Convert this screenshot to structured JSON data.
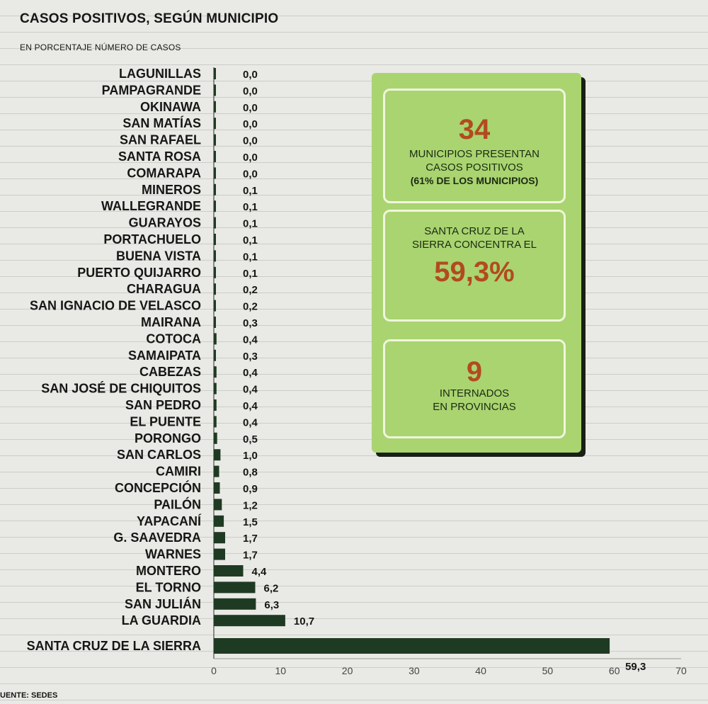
{
  "title": "CASOS POSITIVOS, SEGÚN MUNICIPIO",
  "subtitle": "EN PORCENTAJE NÚMERO DE CASOS",
  "source": "UENTE: SEDES",
  "colors": {
    "bar": "#1f3a22",
    "accent_number": "#b24a20",
    "panel": "#a9d470"
  },
  "info_panel": {
    "box1": {
      "number": "34",
      "line1": "MUNICIPIOS PRESENTAN",
      "line2": "CASOS POSITIVOS",
      "line3": "(61% DE LOS MUNICIPIOS)"
    },
    "box2": {
      "line1": "SANTA CRUZ  DE LA",
      "line2": "SIERRA CONCENTRA EL",
      "number": "59,3%"
    },
    "box3": {
      "number": "9",
      "line1": "INTERNADOS",
      "line2": "EN PROVINCIAS"
    }
  },
  "chart_data": {
    "type": "bar",
    "orientation": "horizontal",
    "title": "CASOS POSITIVOS, SEGÚN MUNICIPIO",
    "subtitle": "EN PORCENTAJE NÚMERO DE CASOS",
    "categories": [
      "LAGUNILLAS",
      "PAMPAGRANDE",
      "OKINAWA",
      "SAN MATÍAS",
      "SAN RAFAEL",
      "SANTA ROSA",
      "COMARAPA",
      "MINEROS",
      "WALLEGRANDE",
      "GUARAYOS",
      "PORTACHUELO",
      "BUENA VISTA",
      "PUERTO QUIJARRO",
      "CHARAGUA",
      "SAN IGNACIO DE VELASCO",
      "MAIRANA",
      "COTOCA",
      "SAMAIPATA",
      "CABEZAS",
      "SAN JOSÉ DE CHIQUITOS",
      "SAN PEDRO",
      "EL PUENTE",
      "PORONGO",
      "SAN CARLOS",
      "CAMIRI",
      "CONCEPCIÓN",
      "PAILÓN",
      "YAPACANÍ",
      "G. SAAVEDRA",
      "WARNES",
      "MONTERO",
      "EL TORNO",
      "SAN JULIÁN",
      "LA GUARDIA",
      "SANTA CRUZ DE LA SIERRA"
    ],
    "values": [
      0.0,
      0.0,
      0.0,
      0.0,
      0.0,
      0.0,
      0.0,
      0.1,
      0.1,
      0.1,
      0.1,
      0.1,
      0.1,
      0.2,
      0.2,
      0.3,
      0.4,
      0.3,
      0.4,
      0.4,
      0.4,
      0.4,
      0.5,
      1.0,
      0.8,
      0.9,
      1.2,
      1.5,
      1.7,
      1.7,
      4.4,
      6.2,
      6.3,
      10.7,
      59.3
    ],
    "value_labels": [
      "0,0",
      "0,0",
      "0,0",
      "0,0",
      "0,0",
      "0,0",
      "0,0",
      "0,1",
      "0,1",
      "0,1",
      "0,1",
      "0,1",
      "0,1",
      "0,2",
      "0,2",
      "0,3",
      "0,4",
      "0,3",
      "0,4",
      "0,4",
      "0,4",
      "0,4",
      "0,5",
      "1,0",
      "0,8",
      "0,9",
      "1,2",
      "1,5",
      "1,7",
      "1,7",
      "4,4",
      "6,2",
      "6,3",
      "10,7",
      "59,3"
    ],
    "xlim": [
      0,
      70
    ],
    "xticks": [
      "0",
      "10",
      "20",
      "30",
      "40",
      "50",
      "60",
      "70"
    ],
    "xticks_values": [
      0,
      10,
      20,
      30,
      40,
      50,
      60,
      70
    ]
  }
}
